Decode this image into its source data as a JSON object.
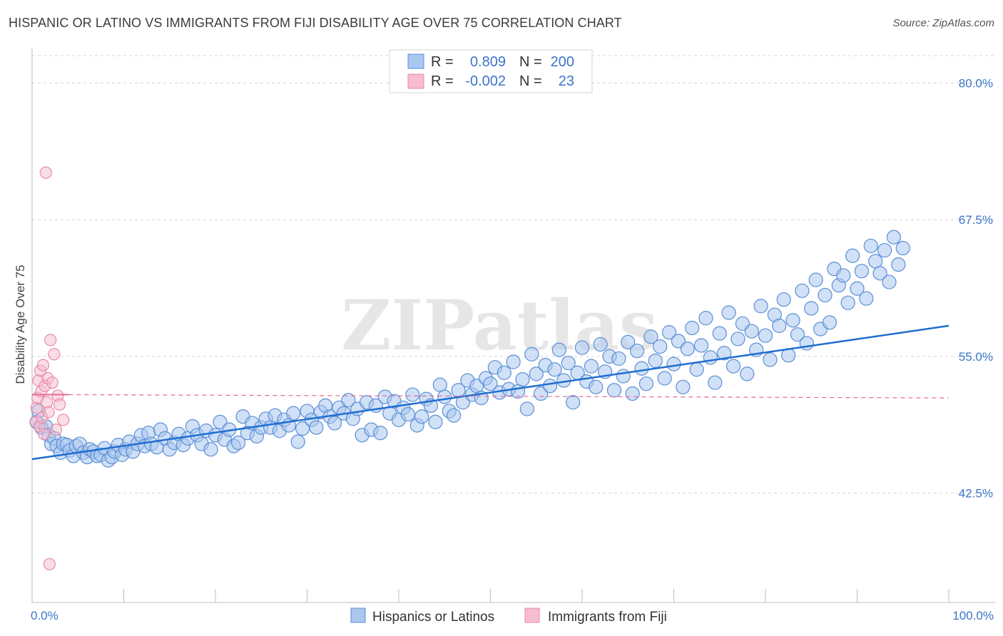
{
  "title": "HISPANIC OR LATINO VS IMMIGRANTS FROM FIJI DISABILITY AGE OVER 75 CORRELATION CHART",
  "source": "Source: ZipAtlas.com",
  "watermark": "ZIPatlas",
  "colors": {
    "blue_fill": "#a9c7ef",
    "blue_stroke": "#5b8fd6",
    "blue_line": "#1f6dd0",
    "pink_fill": "#f7bcd0",
    "pink_stroke": "#e78aaa",
    "pink_line": "#e26a93",
    "tick_text": "#3b74c8",
    "grid": "#d5d5d5"
  },
  "legend": {
    "rows": [
      {
        "r_label": "R =",
        "r_value": "0.809",
        "n_label": "N =",
        "n_value": "200"
      },
      {
        "r_label": "R =",
        "r_value": "-0.002",
        "n_label": "N =",
        "n_value": "23"
      }
    ]
  },
  "bottom_legend": [
    "Hispanics or Latinos",
    "Immigrants from Fiji"
  ],
  "chart_data": {
    "type": "scatter",
    "xlabel": "",
    "ylabel": "Disability Age Over 75",
    "xlim": [
      0,
      100
    ],
    "ylim": [
      32.5,
      82.5
    ],
    "x_tick_labels": [
      "0.0%",
      "100.0%"
    ],
    "y_ticks": [
      42.5,
      55.0,
      67.5,
      80.0
    ],
    "y_tick_labels": [
      "42.5%",
      "55.0%",
      "67.5%",
      "80.0%"
    ],
    "series": [
      {
        "name": "Hispanics or Latinos",
        "R": 0.809,
        "N": 200,
        "trend": {
          "x": [
            0,
            100
          ],
          "y": [
            45.6,
            57.8
          ]
        },
        "points": [
          [
            0.5,
            49.0
          ],
          [
            0.7,
            50.0
          ],
          [
            1.0,
            48.5
          ],
          [
            1.5,
            48.6
          ],
          [
            1.8,
            47.8
          ],
          [
            2.1,
            47.0
          ],
          [
            2.4,
            47.5
          ],
          [
            2.7,
            46.8
          ],
          [
            3.1,
            46.2
          ],
          [
            3.4,
            47.0
          ],
          [
            3.8,
            46.9
          ],
          [
            4.1,
            46.4
          ],
          [
            4.5,
            45.9
          ],
          [
            4.8,
            46.8
          ],
          [
            5.2,
            47.0
          ],
          [
            5.6,
            46.2
          ],
          [
            6.0,
            45.8
          ],
          [
            6.3,
            46.5
          ],
          [
            6.7,
            46.3
          ],
          [
            7.1,
            45.9
          ],
          [
            7.5,
            46.0
          ],
          [
            7.9,
            46.6
          ],
          [
            8.3,
            45.5
          ],
          [
            8.7,
            45.8
          ],
          [
            9.0,
            46.3
          ],
          [
            9.4,
            46.9
          ],
          [
            9.8,
            46.0
          ],
          [
            10.2,
            46.5
          ],
          [
            10.6,
            47.2
          ],
          [
            11.0,
            46.3
          ],
          [
            11.5,
            47.0
          ],
          [
            11.9,
            47.8
          ],
          [
            12.3,
            46.8
          ],
          [
            12.7,
            48.0
          ],
          [
            13.0,
            47.0
          ],
          [
            13.6,
            46.7
          ],
          [
            14.0,
            48.3
          ],
          [
            14.5,
            47.5
          ],
          [
            15.0,
            46.5
          ],
          [
            15.5,
            47.1
          ],
          [
            16.0,
            47.9
          ],
          [
            16.5,
            46.9
          ],
          [
            17.0,
            47.5
          ],
          [
            17.5,
            48.6
          ],
          [
            18.0,
            47.8
          ],
          [
            18.5,
            47.0
          ],
          [
            19.0,
            48.2
          ],
          [
            19.5,
            46.5
          ],
          [
            20.0,
            47.8
          ],
          [
            20.5,
            49.0
          ],
          [
            21.0,
            47.4
          ],
          [
            21.5,
            48.3
          ],
          [
            22.0,
            46.8
          ],
          [
            22.5,
            47.1
          ],
          [
            23.0,
            49.5
          ],
          [
            23.5,
            48.0
          ],
          [
            24.0,
            48.9
          ],
          [
            24.5,
            47.7
          ],
          [
            25.0,
            48.5
          ],
          [
            25.5,
            49.3
          ],
          [
            26.0,
            48.5
          ],
          [
            26.5,
            49.6
          ],
          [
            27.0,
            48.2
          ],
          [
            27.5,
            49.2
          ],
          [
            28.0,
            48.7
          ],
          [
            28.5,
            49.8
          ],
          [
            29.0,
            47.2
          ],
          [
            29.5,
            48.4
          ],
          [
            30.0,
            50.0
          ],
          [
            30.5,
            49.2
          ],
          [
            31.0,
            48.5
          ],
          [
            31.5,
            49.9
          ],
          [
            32.0,
            50.5
          ],
          [
            32.5,
            49.5
          ],
          [
            33.0,
            48.9
          ],
          [
            33.5,
            50.3
          ],
          [
            34.0,
            49.8
          ],
          [
            34.5,
            51.0
          ],
          [
            35.0,
            49.3
          ],
          [
            35.5,
            50.2
          ],
          [
            36.0,
            47.8
          ],
          [
            36.5,
            50.8
          ],
          [
            37.0,
            48.3
          ],
          [
            37.5,
            50.5
          ],
          [
            38.0,
            48.0
          ],
          [
            38.5,
            51.3
          ],
          [
            39.0,
            49.8
          ],
          [
            39.5,
            50.9
          ],
          [
            40.0,
            49.2
          ],
          [
            40.5,
            50.3
          ],
          [
            41.0,
            49.7
          ],
          [
            41.5,
            51.5
          ],
          [
            42.0,
            48.7
          ],
          [
            42.5,
            49.5
          ],
          [
            43.0,
            51.1
          ],
          [
            43.5,
            50.5
          ],
          [
            44.0,
            49.0
          ],
          [
            44.5,
            52.4
          ],
          [
            45.0,
            51.3
          ],
          [
            45.5,
            50.0
          ],
          [
            46.0,
            49.6
          ],
          [
            46.5,
            51.9
          ],
          [
            47.0,
            50.8
          ],
          [
            47.5,
            52.8
          ],
          [
            48.0,
            51.5
          ],
          [
            48.5,
            52.3
          ],
          [
            49.0,
            51.2
          ],
          [
            49.5,
            53.0
          ],
          [
            50.0,
            52.5
          ],
          [
            50.5,
            54.0
          ],
          [
            51.0,
            51.7
          ],
          [
            51.5,
            53.5
          ],
          [
            52.0,
            52.0
          ],
          [
            52.5,
            54.5
          ],
          [
            53.0,
            51.8
          ],
          [
            53.5,
            52.9
          ],
          [
            54.0,
            50.2
          ],
          [
            54.5,
            55.2
          ],
          [
            55.0,
            53.4
          ],
          [
            55.5,
            51.6
          ],
          [
            56.0,
            54.2
          ],
          [
            56.5,
            52.3
          ],
          [
            57.0,
            53.8
          ],
          [
            57.5,
            55.6
          ],
          [
            58.0,
            52.8
          ],
          [
            58.5,
            54.4
          ],
          [
            59.0,
            50.8
          ],
          [
            59.5,
            53.5
          ],
          [
            60.0,
            55.8
          ],
          [
            60.5,
            52.7
          ],
          [
            61.0,
            54.1
          ],
          [
            61.5,
            52.2
          ],
          [
            62.0,
            56.1
          ],
          [
            62.5,
            53.6
          ],
          [
            63.0,
            55.0
          ],
          [
            63.5,
            51.9
          ],
          [
            64.0,
            54.8
          ],
          [
            64.5,
            53.2
          ],
          [
            65.0,
            56.3
          ],
          [
            65.5,
            51.6
          ],
          [
            66.0,
            55.5
          ],
          [
            66.5,
            53.9
          ],
          [
            67.0,
            52.5
          ],
          [
            67.5,
            56.8
          ],
          [
            68.0,
            54.6
          ],
          [
            68.5,
            55.9
          ],
          [
            69.0,
            53.0
          ],
          [
            69.5,
            57.2
          ],
          [
            70.0,
            54.3
          ],
          [
            70.5,
            56.4
          ],
          [
            71.0,
            52.2
          ],
          [
            71.5,
            55.7
          ],
          [
            72.0,
            57.6
          ],
          [
            72.5,
            53.8
          ],
          [
            73.0,
            56.0
          ],
          [
            73.5,
            58.5
          ],
          [
            74.0,
            54.9
          ],
          [
            74.5,
            52.6
          ],
          [
            75.0,
            57.1
          ],
          [
            75.5,
            55.3
          ],
          [
            76.0,
            59.0
          ],
          [
            76.5,
            54.1
          ],
          [
            77.0,
            56.6
          ],
          [
            77.5,
            58.0
          ],
          [
            78.0,
            53.4
          ],
          [
            78.5,
            57.3
          ],
          [
            79.0,
            55.6
          ],
          [
            79.5,
            59.6
          ],
          [
            80.0,
            56.9
          ],
          [
            80.5,
            54.7
          ],
          [
            81.0,
            58.8
          ],
          [
            81.5,
            57.8
          ],
          [
            82.0,
            60.2
          ],
          [
            82.5,
            55.1
          ],
          [
            83.0,
            58.3
          ],
          [
            83.5,
            57.0
          ],
          [
            84.0,
            61.0
          ],
          [
            84.5,
            56.2
          ],
          [
            85.0,
            59.4
          ],
          [
            85.5,
            62.0
          ],
          [
            86.0,
            57.5
          ],
          [
            86.5,
            60.6
          ],
          [
            87.0,
            58.1
          ],
          [
            87.5,
            63.0
          ],
          [
            88.0,
            61.5
          ],
          [
            88.5,
            62.4
          ],
          [
            89.0,
            59.9
          ],
          [
            89.5,
            64.2
          ],
          [
            90.0,
            61.2
          ],
          [
            90.5,
            62.8
          ],
          [
            91.0,
            60.3
          ],
          [
            91.5,
            65.1
          ],
          [
            92.0,
            63.7
          ],
          [
            92.5,
            62.6
          ],
          [
            93.0,
            64.7
          ],
          [
            93.5,
            61.8
          ],
          [
            94.0,
            65.9
          ],
          [
            94.5,
            63.4
          ],
          [
            95.0,
            64.9
          ]
        ]
      },
      {
        "name": "Immigrants from Fiji",
        "R": -0.002,
        "N": 23,
        "trend": {
          "x": [
            0,
            100
          ],
          "y": [
            51.5,
            51.2
          ]
        },
        "points": [
          [
            0.4,
            49.0
          ],
          [
            0.5,
            50.3
          ],
          [
            0.6,
            51.2
          ],
          [
            0.7,
            52.8
          ],
          [
            0.8,
            48.6
          ],
          [
            0.9,
            53.7
          ],
          [
            1.0,
            51.8
          ],
          [
            1.1,
            49.4
          ],
          [
            1.2,
            54.2
          ],
          [
            1.3,
            47.9
          ],
          [
            1.4,
            52.3
          ],
          [
            1.5,
            71.8
          ],
          [
            1.6,
            50.8
          ],
          [
            1.7,
            53.0
          ],
          [
            1.8,
            49.9
          ],
          [
            1.9,
            36.0
          ],
          [
            2.0,
            56.5
          ],
          [
            2.2,
            52.6
          ],
          [
            2.4,
            55.2
          ],
          [
            2.6,
            48.3
          ],
          [
            2.8,
            51.4
          ],
          [
            3.0,
            50.6
          ],
          [
            3.4,
            49.2
          ]
        ]
      }
    ]
  }
}
